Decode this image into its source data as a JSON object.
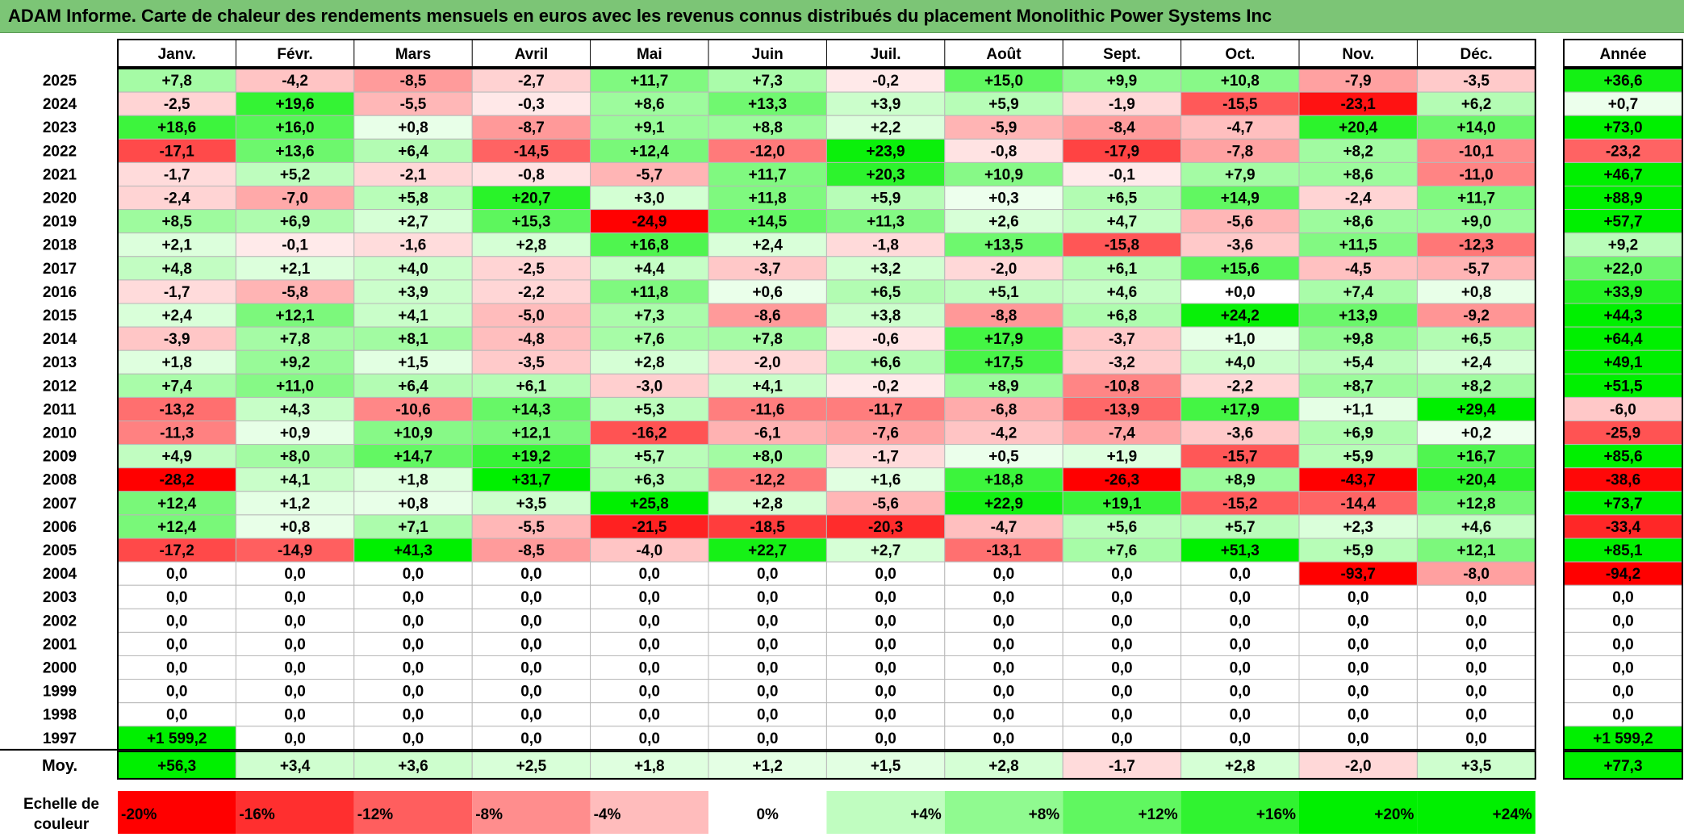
{
  "title": "ADAM Informe. Carte de chaleur des rendements mensuels en euros avec les revenus connus distribués du placement Monolithic Power Systems Inc",
  "chart_data": {
    "type": "heatmap",
    "months": [
      "Janv.",
      "Févr.",
      "Mars",
      "Avril",
      "Mai",
      "Juin",
      "Juil.",
      "Août",
      "Sept.",
      "Oct.",
      "Nov.",
      "Déc."
    ],
    "annual_header": "Année",
    "rows": [
      {
        "year": "2025",
        "cells": [
          "+7,8",
          "-4,2",
          "-8,5",
          "-2,7",
          "+11,7",
          "+7,3",
          "-0,2",
          "+15,0",
          "+9,9",
          "+10,8",
          "-7,9",
          "-3,5"
        ],
        "annual": "+36,6"
      },
      {
        "year": "2024",
        "cells": [
          "-2,5",
          "+19,6",
          "-5,5",
          "-0,3",
          "+8,6",
          "+13,3",
          "+3,9",
          "+5,9",
          "-1,9",
          "-15,5",
          "-23,1",
          "+6,2"
        ],
        "annual": "+0,7"
      },
      {
        "year": "2023",
        "cells": [
          "+18,6",
          "+16,0",
          "+0,8",
          "-8,7",
          "+9,1",
          "+8,8",
          "+2,2",
          "-5,9",
          "-8,4",
          "-4,7",
          "+20,4",
          "+14,0"
        ],
        "annual": "+73,0"
      },
      {
        "year": "2022",
        "cells": [
          "-17,1",
          "+13,6",
          "+6,4",
          "-14,5",
          "+12,4",
          "-12,0",
          "+23,9",
          "-0,8",
          "-17,9",
          "-7,8",
          "+8,2",
          "-10,1"
        ],
        "annual": "-23,2"
      },
      {
        "year": "2021",
        "cells": [
          "-1,7",
          "+5,2",
          "-2,1",
          "-0,8",
          "-5,7",
          "+11,7",
          "+20,3",
          "+10,9",
          "-0,1",
          "+7,9",
          "+8,6",
          "-11,0"
        ],
        "annual": "+46,7"
      },
      {
        "year": "2020",
        "cells": [
          "-2,4",
          "-7,0",
          "+5,8",
          "+20,7",
          "+3,0",
          "+11,8",
          "+5,9",
          "+0,3",
          "+6,5",
          "+14,9",
          "-2,4",
          "+11,7"
        ],
        "annual": "+88,9"
      },
      {
        "year": "2019",
        "cells": [
          "+8,5",
          "+6,9",
          "+2,7",
          "+15,3",
          "-24,9",
          "+14,5",
          "+11,3",
          "+2,6",
          "+4,7",
          "-5,6",
          "+8,6",
          "+9,0"
        ],
        "annual": "+57,7"
      },
      {
        "year": "2018",
        "cells": [
          "+2,1",
          "-0,1",
          "-1,6",
          "+2,8",
          "+16,8",
          "+2,4",
          "-1,8",
          "+13,5",
          "-15,8",
          "-3,6",
          "+11,5",
          "-12,3"
        ],
        "annual": "+9,2"
      },
      {
        "year": "2017",
        "cells": [
          "+4,8",
          "+2,1",
          "+4,0",
          "-2,5",
          "+4,4",
          "-3,7",
          "+3,2",
          "-2,0",
          "+6,1",
          "+15,6",
          "-4,5",
          "-5,7"
        ],
        "annual": "+22,0"
      },
      {
        "year": "2016",
        "cells": [
          "-1,7",
          "-5,8",
          "+3,9",
          "-2,2",
          "+11,8",
          "+0,6",
          "+6,5",
          "+5,1",
          "+4,6",
          "+0,0",
          "+7,4",
          "+0,8"
        ],
        "annual": "+33,9"
      },
      {
        "year": "2015",
        "cells": [
          "+2,4",
          "+12,1",
          "+4,1",
          "-5,0",
          "+7,3",
          "-8,6",
          "+3,8",
          "-8,8",
          "+6,8",
          "+24,2",
          "+13,9",
          "-9,2"
        ],
        "annual": "+44,3"
      },
      {
        "year": "2014",
        "cells": [
          "-3,9",
          "+7,8",
          "+8,1",
          "-4,8",
          "+7,6",
          "+7,8",
          "-0,6",
          "+17,9",
          "-3,7",
          "+1,0",
          "+9,8",
          "+6,5"
        ],
        "annual": "+64,4"
      },
      {
        "year": "2013",
        "cells": [
          "+1,8",
          "+9,2",
          "+1,5",
          "-3,5",
          "+2,8",
          "-2,0",
          "+6,6",
          "+17,5",
          "-3,2",
          "+4,0",
          "+5,4",
          "+2,4"
        ],
        "annual": "+49,1"
      },
      {
        "year": "2012",
        "cells": [
          "+7,4",
          "+11,0",
          "+6,4",
          "+6,1",
          "-3,0",
          "+4,1",
          "-0,2",
          "+8,9",
          "-10,8",
          "-2,2",
          "+8,7",
          "+8,2"
        ],
        "annual": "+51,5"
      },
      {
        "year": "2011",
        "cells": [
          "-13,2",
          "+4,3",
          "-10,6",
          "+14,3",
          "+5,3",
          "-11,6",
          "-11,7",
          "-6,8",
          "-13,9",
          "+17,9",
          "+1,1",
          "+29,4"
        ],
        "annual": "-6,0"
      },
      {
        "year": "2010",
        "cells": [
          "-11,3",
          "+0,9",
          "+10,9",
          "+12,1",
          "-16,2",
          "-6,1",
          "-7,6",
          "-4,2",
          "-7,4",
          "-3,6",
          "+6,9",
          "+0,2"
        ],
        "annual": "-25,9"
      },
      {
        "year": "2009",
        "cells": [
          "+4,9",
          "+8,0",
          "+14,7",
          "+19,2",
          "+5,7",
          "+8,0",
          "-1,7",
          "+0,5",
          "+1,9",
          "-15,7",
          "+5,9",
          "+16,7"
        ],
        "annual": "+85,6"
      },
      {
        "year": "2008",
        "cells": [
          "-28,2",
          "+4,1",
          "+1,8",
          "+31,7",
          "+6,3",
          "-12,2",
          "+1,6",
          "+18,8",
          "-26,3",
          "+8,9",
          "-43,7",
          "+20,4"
        ],
        "annual": "-38,6"
      },
      {
        "year": "2007",
        "cells": [
          "+12,4",
          "+1,2",
          "+0,8",
          "+3,5",
          "+25,8",
          "+2,8",
          "-5,6",
          "+22,9",
          "+19,1",
          "-15,2",
          "-14,4",
          "+12,8"
        ],
        "annual": "+73,7"
      },
      {
        "year": "2006",
        "cells": [
          "+12,4",
          "+0,8",
          "+7,1",
          "-5,5",
          "-21,5",
          "-18,5",
          "-20,3",
          "-4,7",
          "+5,6",
          "+5,7",
          "+2,3",
          "+4,6"
        ],
        "annual": "-33,4"
      },
      {
        "year": "2005",
        "cells": [
          "-17,2",
          "-14,9",
          "+41,3",
          "-8,5",
          "-4,0",
          "+22,7",
          "+2,7",
          "-13,1",
          "+7,6",
          "+51,3",
          "+5,9",
          "+12,1"
        ],
        "annual": "+85,1"
      },
      {
        "year": "2004",
        "cells": [
          "0,0",
          "0,0",
          "0,0",
          "0,0",
          "0,0",
          "0,0",
          "0,0",
          "0,0",
          "0,0",
          "0,0",
          "-93,7",
          "-8,0"
        ],
        "annual": "-94,2"
      },
      {
        "year": "2003",
        "cells": [
          "0,0",
          "0,0",
          "0,0",
          "0,0",
          "0,0",
          "0,0",
          "0,0",
          "0,0",
          "0,0",
          "0,0",
          "0,0",
          "0,0"
        ],
        "annual": "0,0"
      },
      {
        "year": "2002",
        "cells": [
          "0,0",
          "0,0",
          "0,0",
          "0,0",
          "0,0",
          "0,0",
          "0,0",
          "0,0",
          "0,0",
          "0,0",
          "0,0",
          "0,0"
        ],
        "annual": "0,0"
      },
      {
        "year": "2001",
        "cells": [
          "0,0",
          "0,0",
          "0,0",
          "0,0",
          "0,0",
          "0,0",
          "0,0",
          "0,0",
          "0,0",
          "0,0",
          "0,0",
          "0,0"
        ],
        "annual": "0,0"
      },
      {
        "year": "2000",
        "cells": [
          "0,0",
          "0,0",
          "0,0",
          "0,0",
          "0,0",
          "0,0",
          "0,0",
          "0,0",
          "0,0",
          "0,0",
          "0,0",
          "0,0"
        ],
        "annual": "0,0"
      },
      {
        "year": "1999",
        "cells": [
          "0,0",
          "0,0",
          "0,0",
          "0,0",
          "0,0",
          "0,0",
          "0,0",
          "0,0",
          "0,0",
          "0,0",
          "0,0",
          "0,0"
        ],
        "annual": "0,0"
      },
      {
        "year": "1998",
        "cells": [
          "0,0",
          "0,0",
          "0,0",
          "0,0",
          "0,0",
          "0,0",
          "0,0",
          "0,0",
          "0,0",
          "0,0",
          "0,0",
          "0,0"
        ],
        "annual": "0,0"
      },
      {
        "year": "1997",
        "cells": [
          "+1 599,2",
          "0,0",
          "0,0",
          "0,0",
          "0,0",
          "0,0",
          "0,0",
          "0,0",
          "0,0",
          "0,0",
          "0,0",
          "0,0"
        ],
        "annual": "+1 599,2"
      }
    ],
    "average": {
      "label": "Moy.",
      "cells": [
        "+56,3",
        "+3,4",
        "+3,6",
        "+2,5",
        "+1,8",
        "+1,2",
        "+1,5",
        "+2,8",
        "-1,7",
        "+2,8",
        "-2,0",
        "+3,5"
      ],
      "annual": "+77,3"
    },
    "scale": {
      "label": "Echelle de couleur",
      "steps": [
        "-20%",
        "-16%",
        "-12%",
        "-8%",
        "-4%",
        "0%",
        "+4%",
        "+8%",
        "+12%",
        "+16%",
        "+20%",
        "+24%"
      ],
      "values": [
        -20,
        -16,
        -12,
        -8,
        -4,
        0,
        4,
        8,
        12,
        16,
        20,
        24
      ]
    },
    "colors": {
      "positive_max": "#00ee00",
      "negative_max": "#ff0000",
      "neutral": "#ffffff",
      "title_bar": "#7cc576"
    }
  }
}
